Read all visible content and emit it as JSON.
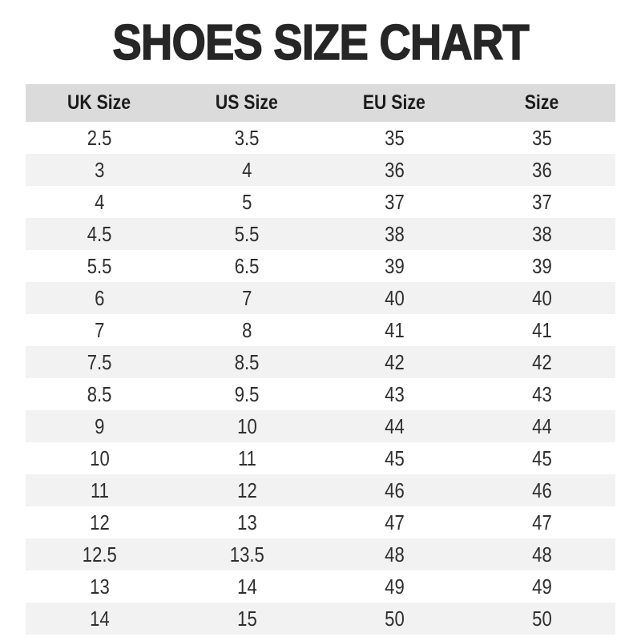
{
  "title": "SHOES SIZE CHART",
  "chart_data": {
    "type": "table",
    "title": "SHOES SIZE CHART",
    "columns": [
      "UK Size",
      "US Size",
      "EU Size",
      "Size"
    ],
    "rows": [
      [
        "2.5",
        "3.5",
        "35",
        "35"
      ],
      [
        "3",
        "4",
        "36",
        "36"
      ],
      [
        "4",
        "5",
        "37",
        "37"
      ],
      [
        "4.5",
        "5.5",
        "38",
        "38"
      ],
      [
        "5.5",
        "6.5",
        "39",
        "39"
      ],
      [
        "6",
        "7",
        "40",
        "40"
      ],
      [
        "7",
        "8",
        "41",
        "41"
      ],
      [
        "7.5",
        "8.5",
        "42",
        "42"
      ],
      [
        "8.5",
        "9.5",
        "43",
        "43"
      ],
      [
        "9",
        "10",
        "44",
        "44"
      ],
      [
        "10",
        "11",
        "45",
        "45"
      ],
      [
        "11",
        "12",
        "46",
        "46"
      ],
      [
        "12",
        "13",
        "47",
        "47"
      ],
      [
        "12.5",
        "13.5",
        "48",
        "48"
      ],
      [
        "13",
        "14",
        "49",
        "49"
      ],
      [
        "14",
        "15",
        "50",
        "50"
      ]
    ],
    "layout": {
      "striped": true,
      "stripe_pattern": "even rows shaded",
      "header_position": "top"
    }
  },
  "colors": {
    "title_color": "#262626",
    "header_bg": "#dbdbdb",
    "header_text": "#1b1b1b",
    "stripe_bg": "#f2f2f2",
    "row_bg": "#ffffff",
    "cell_text": "#2e2e2e"
  }
}
